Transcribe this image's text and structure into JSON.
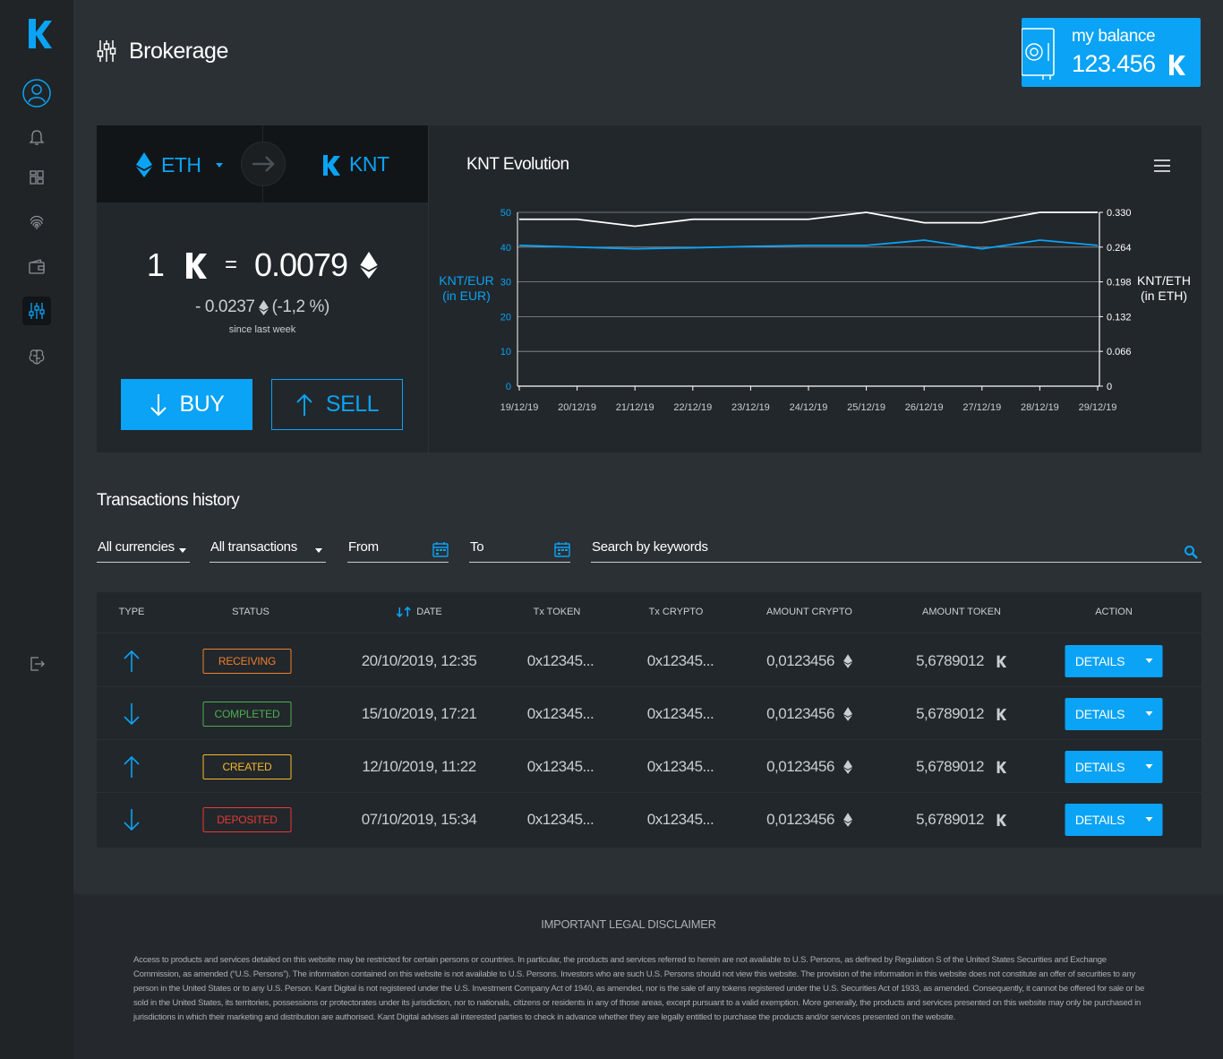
{
  "header": {
    "title": "Brokerage"
  },
  "balance": {
    "label": "my balance",
    "value": "123.456"
  },
  "sidebar": {
    "items": [
      {
        "name": "profile-icon"
      },
      {
        "name": "bell-icon"
      },
      {
        "name": "dashboard-icon"
      },
      {
        "name": "fingerprint-icon"
      },
      {
        "name": "wallet-icon"
      },
      {
        "name": "brokerage-icon"
      },
      {
        "name": "brain-icon"
      },
      {
        "name": "logout-icon"
      }
    ]
  },
  "exchange": {
    "from": "ETH",
    "to": "KNT",
    "rate_left": "1",
    "rate_eq": "=",
    "rate_value": "0.0079",
    "change_value": "- 0.0237",
    "change_pct": "(-1,2 %)",
    "since": "since last week",
    "buy_label": "BUY",
    "sell_label": "SELL"
  },
  "chart_data": {
    "type": "line",
    "title": "KNT Evolution",
    "categories": [
      "19/12/19",
      "20/12/19",
      "21/12/19",
      "22/12/19",
      "23/12/19",
      "24/12/19",
      "25/12/19",
      "26/12/19",
      "27/12/19",
      "28/12/19",
      "29/12/19"
    ],
    "series": [
      {
        "name": "KNT/EUR (in EUR)",
        "axis": "left",
        "color": "#0aa3f5",
        "values": [
          40.5,
          40,
          39.5,
          39.8,
          40.2,
          40.5,
          40.5,
          42,
          39.5,
          42,
          40.5
        ]
      },
      {
        "name": "KNT/ETH (in ETH)",
        "axis": "right",
        "color": "#ffffff",
        "values": [
          0.3168,
          0.3168,
          0.3036,
          0.3168,
          0.3168,
          0.3168,
          0.33,
          0.3102,
          0.3102,
          0.33,
          0.33
        ]
      }
    ],
    "ylabel_left": [
      "KNT/EUR",
      "(in EUR)"
    ],
    "ylabel_right": [
      "KNT/ETH",
      "(in ETH)"
    ],
    "yticks_left": [
      "0",
      "10",
      "20",
      "30",
      "40",
      "50"
    ],
    "yticks_right": [
      "0",
      "0.066",
      "0.132",
      "0.198",
      "0.264",
      "0.330"
    ],
    "ylim_left": [
      0,
      50
    ],
    "ylim_right": [
      0,
      0.33
    ],
    "grid": true
  },
  "history": {
    "title": "Transactions history",
    "filters": {
      "currency": "All currencies",
      "type": "All transactions",
      "from": "From",
      "to": "To",
      "search_placeholder": "Search by keywords"
    },
    "columns": [
      "TYPE",
      "STATUS",
      "DATE",
      "Tx TOKEN",
      "Tx CRYPTO",
      "AMOUNT CRYPTO",
      "AMOUNT TOKEN",
      "ACTION"
    ],
    "rows": [
      {
        "direction": "up",
        "status": "RECEIVING",
        "status_color": "#f07f2c",
        "date": "20/10/2019, 12:35",
        "tx_token": "0x12345...",
        "tx_crypto": "0x12345...",
        "amount_crypto": "0,0123456",
        "amount_token": "5,6789012",
        "action": "DETAILS"
      },
      {
        "direction": "down",
        "status": "COMPLETED",
        "status_color": "#4caf50",
        "date": "15/10/2019, 17:21",
        "tx_token": "0x12345...",
        "tx_crypto": "0x12345...",
        "amount_crypto": "0,0123456",
        "amount_token": "5,6789012",
        "action": "DETAILS"
      },
      {
        "direction": "up",
        "status": "CREATED",
        "status_color": "#f5b82e",
        "date": "12/10/2019, 11:22",
        "tx_token": "0x12345...",
        "tx_crypto": "0x12345...",
        "amount_crypto": "0,0123456",
        "amount_token": "5,6789012",
        "action": "DETAILS"
      },
      {
        "direction": "down",
        "status": "DEPOSITED",
        "status_color": "#e53935",
        "date": "07/10/2019, 15:34",
        "tx_token": "0x12345...",
        "tx_crypto": "0x12345...",
        "amount_crypto": "0,0123456",
        "amount_token": "5,6789012",
        "action": "DETAILS"
      }
    ]
  },
  "footer": {
    "title": "IMPORTANT LEGAL DISCLAIMER",
    "text": "Access to products and services detailed on this website may be restricted for certain persons or countries. In particular, the products and services referred to herein are not available to U.S. Persons, as defined by Regulation S of the United States Securities and Exchange Commission, as amended (“U.S. Persons”). The information contained on this website is not available to U.S. Persons. Investors who are such U.S. Persons should not view this website. The provision of the information in this website does not constitute an offer of securities to any person in the United States or to any U.S. Person. Kant Digital is not registered under the U.S. Investment Company Act of 1940, as amended, nor is the sale of any tokens registered under the U.S. Securities Act of 1933, as amended. Consequently, it cannot be offered for sale or be sold in the United States, its territories, possessions or protectorates under its jurisdiction, nor to nationals, citizens or residents in any of those areas, except pursuant to a valid exemption. More generally, the products and services presented on this website may only be purchased in jurisdictions in which their marketing and distribution are authorised. Kant Digital advises all interested parties to check in advance whether they are legally entitled to purchase the products and/or services presented on the website."
  }
}
